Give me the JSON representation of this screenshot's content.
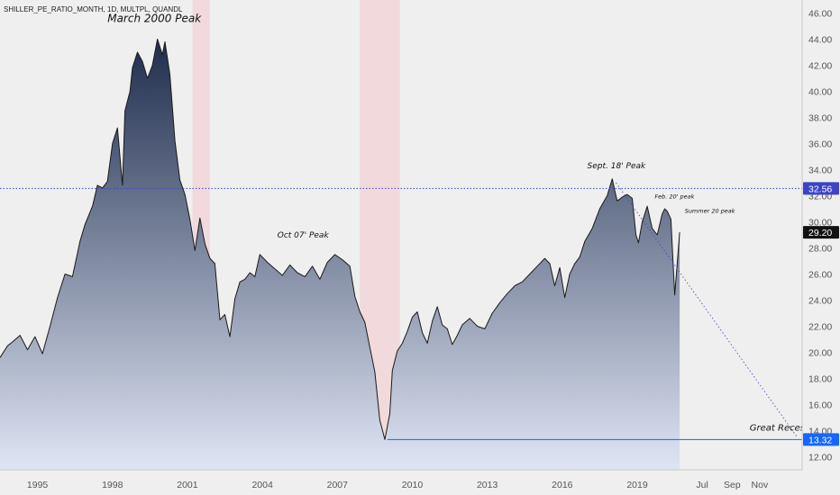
{
  "symbol": "SHILLER_PE_RATIO_MONTH, 1D, MULTPL, QUANDL",
  "colors": {
    "background": "#efefef",
    "area_top": "#1f2d4d",
    "area_bottom": "#dfe5f4",
    "line": "#1a1a1a",
    "recession": "#f2c6cc",
    "hline": "#1565ff",
    "dashed_line": "#3b44c8",
    "last_price_label": "#111111",
    "level_label": "#1565ff"
  },
  "chart_data": {
    "type": "area",
    "title": "",
    "xlabel": "",
    "ylabel": "",
    "ylim": [
      11.0,
      47.0
    ],
    "xlim": [
      1993.5,
      2025.6
    ],
    "y_ticks": [
      "12.00",
      "14.00",
      "16.00",
      "18.00",
      "20.00",
      "22.00",
      "24.00",
      "26.00",
      "28.00",
      "30.00",
      "32.00",
      "34.00",
      "36.00",
      "38.00",
      "40.00",
      "42.00",
      "44.00",
      "46.00"
    ],
    "x_tick_labels": [
      {
        "x": 1995,
        "label": "1995"
      },
      {
        "x": 1998,
        "label": "1998"
      },
      {
        "x": 2001,
        "label": "2001"
      },
      {
        "x": 2004,
        "label": "2004"
      },
      {
        "x": 2007,
        "label": "2007"
      },
      {
        "x": 2010,
        "label": "2010"
      },
      {
        "x": 2013,
        "label": "2013"
      },
      {
        "x": 2016,
        "label": "2016"
      },
      {
        "x": 2019,
        "label": "2019"
      },
      {
        "x": 2021.6,
        "label": "Jul"
      },
      {
        "x": 2022.8,
        "label": "Sep"
      },
      {
        "x": 2023.9,
        "label": "Nov"
      }
    ],
    "series": [
      {
        "x": [
          1993.5,
          1993.8,
          1994.0,
          1994.3,
          1994.6,
          1994.9,
          1995.2,
          1995.5,
          1995.8,
          1996.1,
          1996.4,
          1996.7,
          1996.9,
          1997.2,
          1997.4,
          1997.6,
          1997.8,
          1998.0,
          1998.2,
          1998.4,
          1998.5,
          1998.7,
          1998.8,
          1999.0,
          1999.2,
          1999.4,
          1999.6,
          1999.8,
          2000.0,
          2000.1,
          2000.3,
          2000.5,
          2000.7,
          2000.9,
          2001.1,
          2001.3,
          2001.5,
          2001.7,
          2001.9,
          2002.1,
          2002.3,
          2002.5,
          2002.7,
          2002.9,
          2003.1,
          2003.3,
          2003.5,
          2003.7,
          2003.9,
          2004.2,
          2004.5,
          2004.8,
          2005.1,
          2005.4,
          2005.7,
          2006.0,
          2006.3,
          2006.6,
          2006.9,
          2007.2,
          2007.5,
          2007.7,
          2007.9,
          2008.1,
          2008.3,
          2008.5,
          2008.7,
          2008.9,
          2009.1,
          2009.2,
          2009.4,
          2009.6,
          2009.8,
          2010.0,
          2010.2,
          2010.4,
          2010.6,
          2010.8,
          2011.0,
          2011.2,
          2011.4,
          2011.6,
          2011.8,
          2012.0,
          2012.3,
          2012.6,
          2012.9,
          2013.2,
          2013.5,
          2013.8,
          2014.1,
          2014.4,
          2014.7,
          2015.0,
          2015.3,
          2015.5,
          2015.7,
          2015.9,
          2016.1,
          2016.3,
          2016.5,
          2016.7,
          2016.9,
          2017.2,
          2017.5,
          2017.8,
          2018.0,
          2018.1,
          2018.2,
          2018.4,
          2018.6,
          2018.8,
          2018.95,
          2019.05,
          2019.2,
          2019.4,
          2019.6,
          2019.8,
          2020.0,
          2020.1,
          2020.2,
          2020.35,
          2020.5,
          2020.7
        ],
        "y": [
          19.6,
          20.5,
          20.8,
          21.3,
          20.2,
          21.2,
          19.9,
          22.0,
          24.2,
          26.0,
          25.8,
          28.5,
          29.8,
          31.2,
          32.8,
          32.6,
          33.1,
          36.0,
          37.2,
          32.8,
          38.5,
          40.0,
          41.8,
          43.0,
          42.3,
          41.0,
          42.0,
          44.0,
          42.8,
          43.8,
          41.3,
          36.2,
          33.2,
          32.1,
          30.2,
          27.8,
          30.3,
          28.3,
          27.2,
          26.8,
          22.5,
          22.9,
          21.2,
          24.1,
          25.4,
          25.6,
          26.1,
          25.8,
          27.5,
          26.9,
          26.4,
          25.9,
          26.7,
          26.1,
          25.8,
          26.6,
          25.6,
          26.9,
          27.5,
          27.1,
          26.6,
          24.3,
          23.1,
          22.3,
          20.4,
          18.5,
          14.8,
          13.32,
          15.3,
          18.6,
          20.1,
          20.7,
          21.6,
          22.7,
          23.1,
          21.5,
          20.7,
          22.4,
          23.5,
          22.1,
          21.8,
          20.6,
          21.3,
          22.1,
          22.6,
          22.0,
          21.8,
          23.0,
          23.8,
          24.5,
          25.1,
          25.4,
          26.0,
          26.6,
          27.2,
          26.8,
          25.1,
          26.5,
          24.2,
          26.0,
          26.8,
          27.3,
          28.5,
          29.5,
          31.0,
          32.0,
          33.3,
          32.4,
          31.6,
          31.9,
          32.1,
          31.8,
          29.0,
          28.4,
          30.0,
          31.2,
          29.5,
          29.0,
          30.6,
          31.0,
          30.8,
          30.2,
          24.4,
          29.2
        ]
      }
    ],
    "recessions": [
      [
        2001.2,
        2001.9
      ],
      [
        2007.9,
        2009.5
      ]
    ],
    "horizontal_lines": [
      {
        "y": 32.56,
        "label": "32.56",
        "style": "dotted"
      },
      {
        "y": 13.32,
        "label": "13.32",
        "style": "solid",
        "from_x": 2009.0
      }
    ],
    "last_value": {
      "y": 29.2,
      "label": "29.20"
    },
    "trendline": {
      "from": [
        2018.15,
        33.0
      ],
      "to": [
        2025.4,
        13.5
      ]
    },
    "annotations": [
      {
        "text": "March 2000 Peak",
        "x": 1997.8,
        "y": 45.3,
        "size": 12
      },
      {
        "text": "Oct 07' Peak",
        "x": 2004.6,
        "y": 28.8,
        "size": 9
      },
      {
        "text": "Sept. 18' Peak",
        "x": 2017.0,
        "y": 34.1,
        "size": 9
      },
      {
        "text": "Feb. 20' peak",
        "x": 2019.7,
        "y": 31.8,
        "size": 6.5
      },
      {
        "text": "Summer 20 peak",
        "x": 2020.9,
        "y": 30.7,
        "size": 6.5
      },
      {
        "text": "Great Recession",
        "x": 2023.5,
        "y": 14.0,
        "size": 10,
        "color": "#3b44c8"
      }
    ]
  }
}
